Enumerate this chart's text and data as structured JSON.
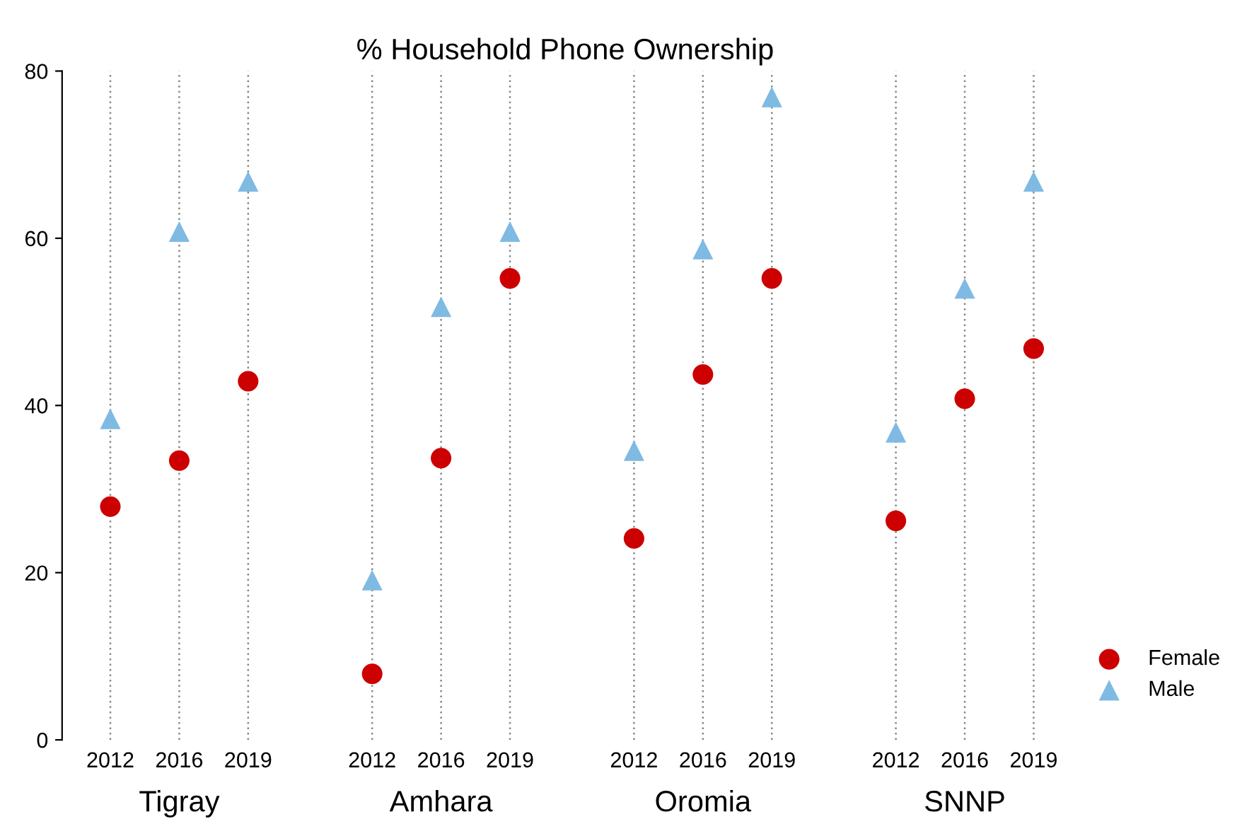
{
  "chart_data": {
    "type": "scatter",
    "title": "% Household Phone Ownership",
    "categories": [
      "2012",
      "2016",
      "2019",
      "2012",
      "2016",
      "2019",
      "2012",
      "2016",
      "2019",
      "2012",
      "2016",
      "2019"
    ],
    "annotations": [
      "Tigray",
      "Amhara",
      "Oromia",
      "SNNP"
    ],
    "series": [
      {
        "name": "Female",
        "color": "#cc0000",
        "marker": "circle",
        "values": [
          27.9,
          33.4,
          42.9,
          7.9,
          33.7,
          55.2,
          24.1,
          43.7,
          55.2,
          26.2,
          40.8,
          46.8
        ]
      },
      {
        "name": "Male",
        "color": "#7fbae3",
        "marker": "triangle",
        "values": [
          38.4,
          60.8,
          66.8,
          19.1,
          51.8,
          60.8,
          34.6,
          58.7,
          76.9,
          36.8,
          54.0,
          66.8
        ]
      }
    ],
    "ylim": [
      0,
      80
    ],
    "yticks": [
      0,
      20,
      40,
      60,
      80
    ],
    "grid": "x",
    "legend": "bottom right"
  }
}
